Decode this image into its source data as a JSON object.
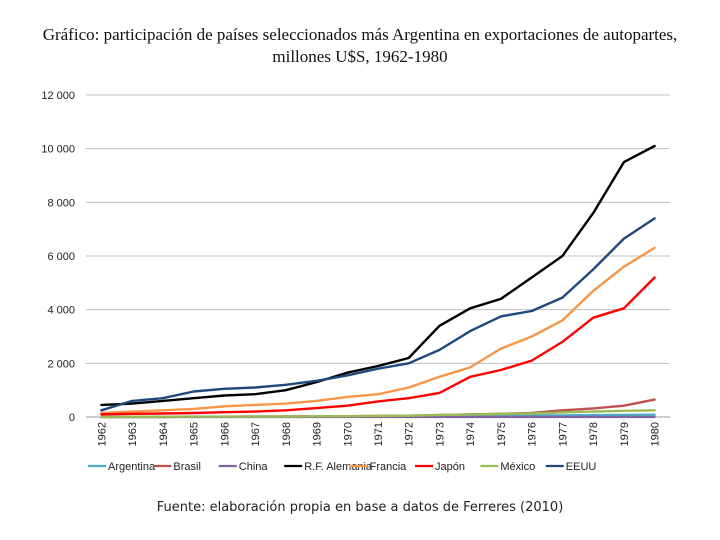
{
  "chart_data": {
    "type": "line",
    "title": "Gráfico: participación de países seleccionados más Argentina en exportaciones de autopartes, millones U$S, 1962-1980",
    "source": "Fuente: elaboración propia en base a datos de Ferreres (2010)",
    "ylim": [
      0,
      12000
    ],
    "y_ticks": [
      0,
      2000,
      4000,
      6000,
      8000,
      10000,
      12000
    ],
    "y_tick_labels": [
      "0",
      "2 000",
      "4 000",
      "6 000",
      "8 000",
      "10 000",
      "12 000"
    ],
    "categories": [
      "1962",
      "1963",
      "1964",
      "1965",
      "1966",
      "1967",
      "1968",
      "1969",
      "1970",
      "1971",
      "1972",
      "1973",
      "1974",
      "1975",
      "1976",
      "1977",
      "1978",
      "1979",
      "1980"
    ],
    "legend_position": "bottom",
    "grid": true,
    "series": [
      {
        "name": "Argentina",
        "color": "#4bacc6",
        "values": [
          5,
          5,
          5,
          10,
          10,
          10,
          15,
          15,
          20,
          20,
          25,
          35,
          50,
          60,
          55,
          60,
          70,
          80,
          85
        ]
      },
      {
        "name": "Brasil",
        "color": "#c0504d",
        "values": [
          5,
          5,
          5,
          10,
          10,
          15,
          20,
          25,
          30,
          40,
          50,
          70,
          100,
          120,
          150,
          250,
          320,
          420,
          650
        ]
      },
      {
        "name": "China",
        "color": "#8064a2",
        "values": [
          5,
          5,
          5,
          5,
          5,
          5,
          5,
          5,
          5,
          5,
          5,
          5,
          5,
          5,
          5,
          5,
          5,
          5,
          5
        ]
      },
      {
        "name": "R.F. Alemania",
        "color": "#000000",
        "values": [
          450,
          500,
          600,
          700,
          800,
          850,
          1000,
          1300,
          1650,
          1900,
          2200,
          3400,
          4050,
          4400,
          5200,
          6000,
          7600,
          9500,
          10100
        ]
      },
      {
        "name": "Francia",
        "color": "#f79646",
        "values": [
          150,
          200,
          250,
          300,
          400,
          450,
          500,
          600,
          750,
          850,
          1100,
          1500,
          1850,
          2550,
          3000,
          3600,
          4700,
          5600,
          6300
        ]
      },
      {
        "name": "Japón",
        "color": "#ff0000",
        "values": [
          100,
          120,
          130,
          150,
          180,
          200,
          250,
          330,
          420,
          580,
          700,
          900,
          1500,
          1750,
          2100,
          2800,
          3700,
          4050,
          5200
        ]
      },
      {
        "name": "México",
        "color": "#9bbb59",
        "values": [
          5,
          10,
          10,
          15,
          15,
          20,
          20,
          25,
          30,
          40,
          50,
          80,
          90,
          110,
          130,
          170,
          200,
          230,
          250
        ]
      },
      {
        "name": "EEUU",
        "color": "#1f497d",
        "values": [
          250,
          600,
          700,
          950,
          1050,
          1100,
          1200,
          1350,
          1550,
          1800,
          2000,
          2500,
          3200,
          3750,
          3950,
          4450,
          5500,
          6650,
          7400
        ]
      }
    ]
  }
}
